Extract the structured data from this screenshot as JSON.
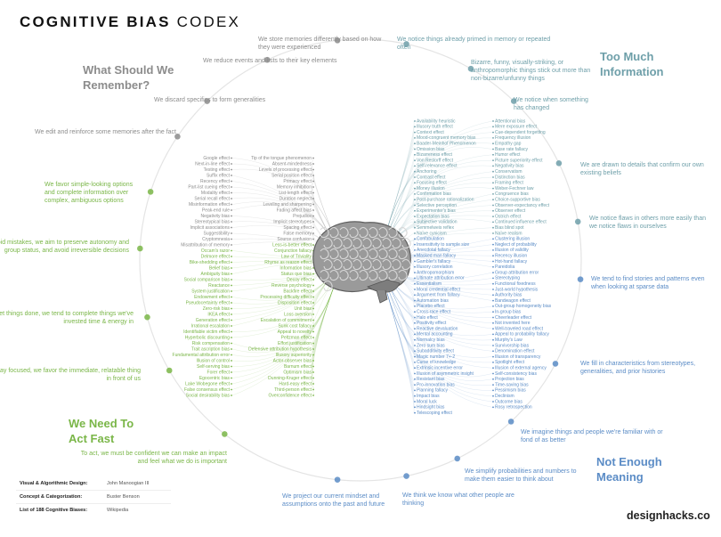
{
  "title": {
    "bold": "COGNITIVE BIAS",
    "light": "CODEX"
  },
  "categories": [
    {
      "title": "Too Much Information",
      "color": "#6e9fa9",
      "subcategories": [
        {
          "label": "We notice things already primed in memory or repeated often",
          "biases": [
            "Availability heuristic",
            "Attentional bias",
            "Illusory truth effect",
            "Mere exposure effect",
            "Context effect",
            "Cue-dependent forgetting",
            "Mood-congruent memory bias",
            "Frequency illusion",
            "Baader-Meinhof Phenomenon",
            "Empathy gap",
            "Omission bias",
            "Base rate fallacy"
          ]
        },
        {
          "label": "Bizarre, funny, visually-striking, or anthropomorphic things stick out more than non-bizarre/unfunny things",
          "biases": [
            "Bizarreness effect",
            "Humor effect",
            "Von Restorff effect",
            "Picture superiority effect",
            "Self-relevance effect",
            "Negativity bias"
          ]
        },
        {
          "label": "We notice when something has changed",
          "biases": [
            "Anchoring",
            "Conservatism",
            "Contrast effect",
            "Distinction bias",
            "Focusing effect",
            "Framing effect",
            "Money illusion",
            "Weber-Fechner law"
          ]
        },
        {
          "label": "We are drawn to details that confirm our own existing beliefs",
          "biases": [
            "Confirmation bias",
            "Congruence bias",
            "Post-purchase rationalization",
            "Choice-supportive bias",
            "Selective perception",
            "Observer-expectancy effect",
            "Experimenter's bias",
            "Observer effect",
            "Expectation bias",
            "Ostrich effect",
            "Subjective validation",
            "Continued influence effect",
            "Semmelweis reflex"
          ]
        },
        {
          "label": "We notice flaws in others more easily than we notice flaws in ourselves",
          "biases": [
            "Bias blind spot",
            "Naïve cynicism",
            "Naïve realism"
          ]
        }
      ]
    },
    {
      "title": "Not Enough Meaning",
      "color": "#5b8cc6",
      "subcategories": [
        {
          "label": "We tend to find stories and patterns even when looking at sparse data",
          "biases": [
            "Confabulation",
            "Clustering illusion",
            "Insensitivity to sample size",
            "Neglect of probability",
            "Anecdotal fallacy",
            "Illusion of validity",
            "Masked man fallacy",
            "Recency illusion",
            "Gambler's fallacy",
            "Hot-hand fallacy",
            "Illusory correlation",
            "Pareidolia",
            "Anthropomorphism"
          ]
        },
        {
          "label": "We fill in characteristics from stereotypes, generalities, and prior histories",
          "biases": [
            "Group attribution error",
            "Ultimate attribution error",
            "Stereotyping",
            "Essentialism",
            "Functional fixedness",
            "Moral credential effect",
            "Just-world hypothesis",
            "Argument from fallacy",
            "Authority bias",
            "Automation bias",
            "Bandwagon effect",
            "Placebo effect"
          ]
        },
        {
          "label": "We imagine things and people we're familiar with or fond of as better",
          "biases": [
            "Out-group homogeneity bias",
            "Cross-race effect",
            "In-group bias",
            "Halo effect",
            "Cheerleader effect",
            "Positivity effect",
            "Not invented here",
            "Reactive devaluation",
            "Well-traveled road effect"
          ]
        },
        {
          "label": "We simplify probabilities and numbers to make them easier to think about",
          "biases": [
            "Mental accounting",
            "Appeal to probability fallacy",
            "Normalcy bias",
            "Murphy's Law",
            "Zero sum bias",
            "Survivorship bias",
            "Subadditivity effect",
            "Denomination effect",
            "Magic number 7+-2"
          ]
        },
        {
          "label": "We think we know what other people are thinking",
          "biases": [
            "Illusion of transparency",
            "Curse of knowledge",
            "Spotlight effect",
            "Extrinsic incentive error",
            "Illusion of external agency",
            "Illusion of asymmetric insight"
          ]
        },
        {
          "label": "We project our current mindset and assumptions onto the past and future",
          "biases": [
            "Self-consistency bias",
            "Resistant bias",
            "Projection bias",
            "Pro-innovation bias",
            "Time-saving bias",
            "Planning fallacy",
            "Pessimism bias",
            "Impact bias",
            "Declinism",
            "Moral luck",
            "Outcome bias",
            "Hindsight bias",
            "Rosy retrospection",
            "Telescoping effect"
          ]
        }
      ]
    },
    {
      "title": "We Need To Act Fast",
      "color": "#7ab648",
      "subcategories": [
        {
          "label": "To act, we must be confident we can make an impact and feel what we do is important",
          "biases": [
            "Overconfidence effect",
            "Social desirability bias",
            "Third-person effect",
            "False consensus effect",
            "Hard-easy effect",
            "Lake Wobegone effect",
            "Dunning-Kruger effect",
            "Egocentric bias",
            "Optimism bias",
            "Forer effect",
            "Barnum effect",
            "Self-serving bias",
            "Actor-observer bias",
            "Illusion of control",
            "Illusory superiority",
            "Fundamental attribution error",
            "Defensive attribution hypothesis",
            "Trait ascription bias",
            "Effort justification",
            "Risk compensation",
            "Peltzman effect"
          ]
        },
        {
          "label": "To stay focused, we favor the immediate, relatable thing in front of us",
          "biases": [
            "Hyperbolic discounting",
            "Appeal to novelty",
            "Identifiable victim effect"
          ]
        },
        {
          "label": "To get things done, we tend to complete things we've invested time & energy in",
          "biases": [
            "Sunk cost fallacy",
            "Irrational escalation",
            "Escalation of commitment",
            "Generation effect",
            "Loss aversion",
            "IKEA effect",
            "Unit bias",
            "Zero-risk bias",
            "Disposition effect",
            "Pseudocertainty effect",
            "Processing difficulty effect",
            "Endowment effect",
            "Backfire effect"
          ]
        },
        {
          "label": "To avoid mistakes, we aim to preserve autonomy and group status, and avoid irreversible decisions",
          "biases": [
            "System justification",
            "Reverse psychology",
            "Reactance",
            "Decoy effect",
            "Social comparison bias",
            "Status quo bias"
          ]
        },
        {
          "label": "We favor simple-looking options and complete information over complex, ambiguous options",
          "biases": [
            "Ambiguity bias",
            "Information bias",
            "Belief bias",
            "Rhyme as reason effect",
            "Bike-shedding effect",
            "Law of Triviality",
            "Delmore effect",
            "Conjunction fallacy",
            "Occam's razor",
            "Less-is-better effect"
          ]
        }
      ]
    },
    {
      "title": "What Should We Remember?",
      "color": "#8c8c8c",
      "subcategories": [
        {
          "label": "We edit and reinforce some memories after the fact",
          "biases": [
            "Misattribution of memory",
            "Source confusion",
            "Cryptomnesia",
            "False memory",
            "Suggestibility",
            "Spacing effect"
          ]
        },
        {
          "label": "We discard specifics to form generalities",
          "biases": [
            "Implicit associations",
            "Implicit stereotypes",
            "Stereotypical bias",
            "Prejudice",
            "Negativity bias",
            "Fading affect bias"
          ]
        },
        {
          "label": "We reduce events and lists to their key elements",
          "biases": [
            "Peak-end rule",
            "Leveling and sharpening",
            "Misinformation effect",
            "Duration neglect",
            "Serial recall effect",
            "List-length effect",
            "Modality effect",
            "Memory inhibition",
            "Part-list cueing effect",
            "Primacy effect",
            "Recency effect",
            "Serial position effect",
            "Suffix effect"
          ]
        },
        {
          "label": "We store memories differently based on how they were experienced",
          "biases": [
            "Levels of processing effect",
            "Testing effect",
            "Absent-mindedness",
            "Next-in-line effect",
            "Tip of the tongue phenomenon",
            "Google effect"
          ]
        }
      ]
    }
  ],
  "credits": [
    {
      "key": "Visual & Algorithmic Design:",
      "value": "John Manoogian III"
    },
    {
      "key": "Concept & Categorization:",
      "value": "Buster Benson"
    },
    {
      "key": "List of 188 Cognitive Biases:",
      "value": "Wikipedia"
    }
  ],
  "brand": "designhacks.co",
  "ring_color": "#e4e4e4"
}
